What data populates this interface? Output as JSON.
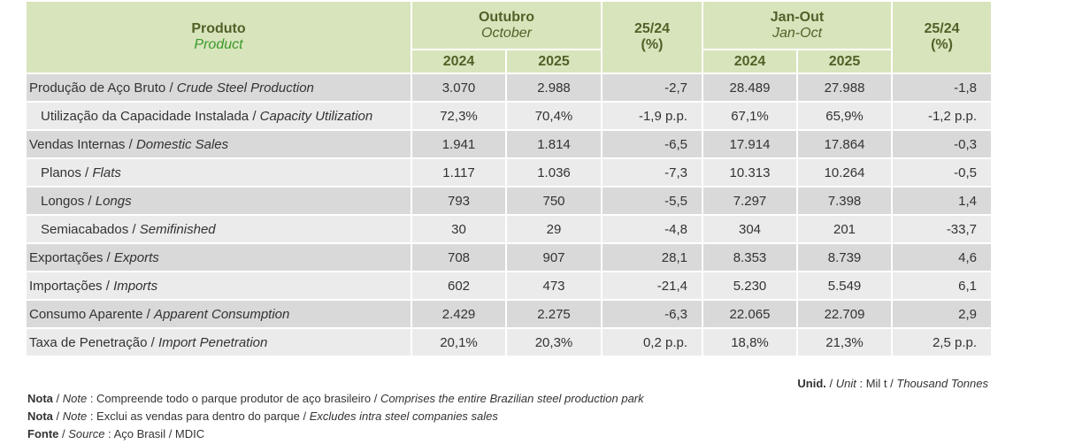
{
  "header": {
    "product_pt": "Produto",
    "product_en": "Product",
    "oct_pt": "Outubro",
    "oct_en": "October",
    "janoct_pt": "Jan-Out",
    "janoct_en": "Jan-Oct",
    "pct_label": "25/24",
    "pct_unit": "(%)",
    "year1": "2024",
    "year2": "2025"
  },
  "rows": [
    {
      "pt": "Produção de Aço Bruto",
      "en": "Crude Steel Production",
      "sub": false,
      "v": [
        "3.070",
        "2.988",
        "-2,7",
        "28.489",
        "27.988",
        "-1,8"
      ]
    },
    {
      "pt": "Utilização da Capacidade Instalada",
      "en": "Capacity Utilization",
      "sub": true,
      "v": [
        "72,3%",
        "70,4%",
        "-1,9 p.p.",
        "67,1%",
        "65,9%",
        "-1,2 p.p."
      ]
    },
    {
      "pt": "Vendas Internas",
      "en": "Domestic Sales",
      "sub": false,
      "v": [
        "1.941",
        "1.814",
        "-6,5",
        "17.914",
        "17.864",
        "-0,3"
      ]
    },
    {
      "pt": "Planos",
      "en": "Flats",
      "sub": true,
      "v": [
        "1.117",
        "1.036",
        "-7,3",
        "10.313",
        "10.264",
        "-0,5"
      ]
    },
    {
      "pt": "Longos",
      "en": "Longs",
      "sub": true,
      "v": [
        "793",
        "750",
        "-5,5",
        "7.297",
        "7.398",
        "1,4"
      ]
    },
    {
      "pt": "Semiacabados",
      "en": "Semifinished",
      "sub": true,
      "v": [
        "30",
        "29",
        "-4,8",
        "304",
        "201",
        "-33,7"
      ]
    },
    {
      "pt": "Exportações",
      "en": "Exports",
      "sub": false,
      "v": [
        "708",
        "907",
        "28,1",
        "8.353",
        "8.739",
        "4,6"
      ]
    },
    {
      "pt": "Importações",
      "en": "Imports",
      "sub": false,
      "v": [
        "602",
        "473",
        "-21,4",
        "5.230",
        "5.549",
        "6,1"
      ]
    },
    {
      "pt": "Consumo Aparente",
      "en": "Apparent Consumption",
      "sub": false,
      "v": [
        "2.429",
        "2.275",
        "-6,3",
        "22.065",
        "22.709",
        "2,9"
      ]
    },
    {
      "pt": "Taxa de Penetração",
      "en": "Import Penetration",
      "sub": false,
      "v": [
        "20,1%",
        "20,3%",
        "0,2 p.p.",
        "18,8%",
        "21,3%",
        "2,5 p.p."
      ]
    }
  ],
  "unit": {
    "label_pt": "Unid.",
    "label_en": "Unit",
    "value_pt": "Mil t",
    "value_en": "Thousand Tonnes"
  },
  "notes": [
    {
      "label_pt": "Nota",
      "label_en": "Note",
      "text_pt": "Compreende todo o parque produtor de aço brasileiro",
      "text_en": "Comprises the entire Brazilian steel production park"
    },
    {
      "label_pt": "Nota",
      "label_en": "Note",
      "text_pt": "Exclui as vendas para dentro do parque",
      "text_en": "Excludes intra steel companies sales"
    },
    {
      "label_pt": "Fonte",
      "label_en": "Source",
      "text_pt": "Aço Brasil / MDIC",
      "text_en": ""
    }
  ],
  "colors": {
    "header_bg": "#d8e4bc",
    "header_text": "#4f6228",
    "row_dark": "#d9d9d9",
    "row_light": "#ebebeb"
  }
}
